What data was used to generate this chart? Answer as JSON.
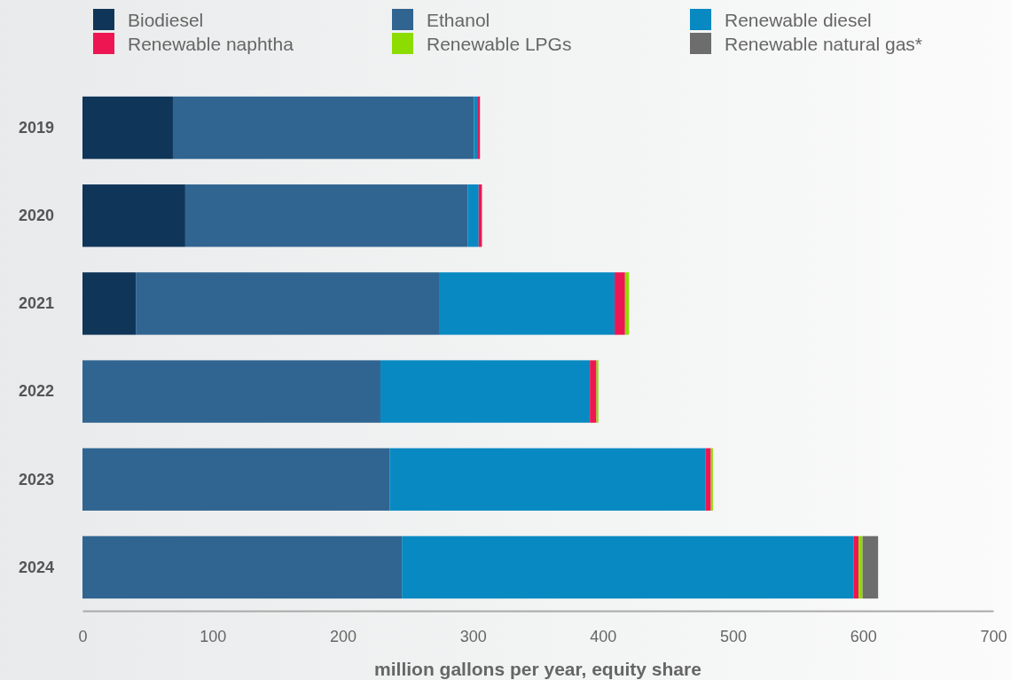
{
  "chart_data": {
    "type": "bar",
    "orientation": "horizontal",
    "stacked": true,
    "xlabel": "million gallons per year, equity share",
    "categories": [
      "2019",
      "2020",
      "2021",
      "2022",
      "2023",
      "2024"
    ],
    "xlim": [
      0,
      700
    ],
    "xticks": [
      0,
      100,
      200,
      300,
      400,
      500,
      600,
      700
    ],
    "grid": false,
    "legend": "top",
    "series": [
      {
        "name": "Biodiesel",
        "color": "#0f3659",
        "values": [
          69.5,
          79,
          41,
          0,
          0,
          0
        ]
      },
      {
        "name": "Ethanol",
        "color": "#316591",
        "values": [
          231.5,
          217,
          233,
          229,
          236,
          245.5
        ]
      },
      {
        "name": "Renewable diesel",
        "color": "#0889c2",
        "values": [
          3,
          8.5,
          135,
          161,
          243,
          347
        ]
      },
      {
        "name": "Renewable naphtha",
        "color": "#ed1652",
        "values": [
          1.5,
          2.5,
          8,
          5,
          4,
          4
        ]
      },
      {
        "name": "Renewable LPGs",
        "color": "#8ddc00",
        "values": [
          0,
          0,
          3,
          1.5,
          1.5,
          3
        ]
      },
      {
        "name": "Renewable natural gas*",
        "color": "#6d6d6d",
        "values": [
          0,
          0,
          0,
          0,
          0,
          12
        ]
      }
    ]
  }
}
